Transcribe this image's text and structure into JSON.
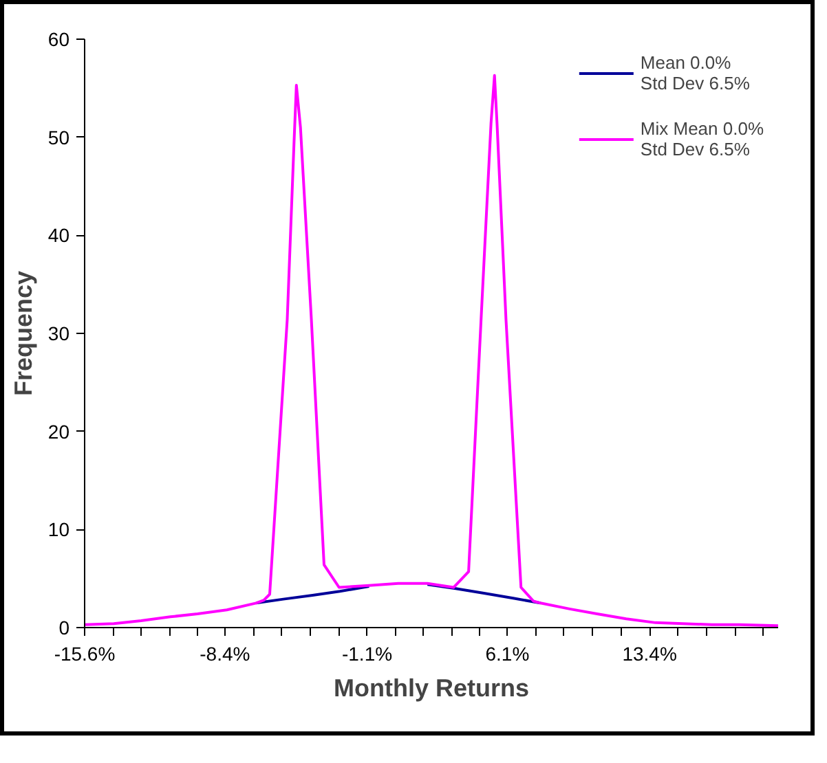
{
  "chart_data": {
    "type": "line",
    "xlabel": "Monthly Returns",
    "ylabel": "Frequency",
    "xlim": [
      -15.6,
      20.0
    ],
    "ylim": [
      0,
      60
    ],
    "xticks": [
      {
        "value": -15.6,
        "label": "-15.6%"
      },
      {
        "value": -14.15,
        "label": null
      },
      {
        "value": -12.69,
        "label": null
      },
      {
        "value": -11.24,
        "label": null
      },
      {
        "value": -9.78,
        "label": null
      },
      {
        "value": -8.4,
        "label": "-8.4%"
      },
      {
        "value": -6.94,
        "label": null
      },
      {
        "value": -5.48,
        "label": null
      },
      {
        "value": -4.02,
        "label": null
      },
      {
        "value": -2.56,
        "label": null
      },
      {
        "value": -1.1,
        "label": "-1.1%"
      },
      {
        "value": 0.35,
        "label": null
      },
      {
        "value": 1.8,
        "label": null
      },
      {
        "value": 3.25,
        "label": null
      },
      {
        "value": 4.7,
        "label": null
      },
      {
        "value": 6.1,
        "label": "6.1%"
      },
      {
        "value": 7.55,
        "label": null
      },
      {
        "value": 9.0,
        "label": null
      },
      {
        "value": 10.46,
        "label": null
      },
      {
        "value": 11.92,
        "label": null
      },
      {
        "value": 13.4,
        "label": "13.4%"
      },
      {
        "value": 14.86,
        "label": null
      },
      {
        "value": 16.32,
        "label": null
      },
      {
        "value": 17.78,
        "label": null
      },
      {
        "value": 19.24,
        "label": null
      }
    ],
    "yticks": [
      0,
      10,
      20,
      30,
      40,
      50,
      60
    ],
    "grid": false,
    "legend": "top right",
    "marker": "none",
    "line_style": "solid",
    "series": [
      {
        "name": "Mean 0.0% Std Dev 6.5%",
        "color": "#000099",
        "x": [
          -6.8,
          -5.4,
          -3.9,
          -2.5,
          -1.0,
          0.5,
          2.0,
          3.4,
          4.9,
          6.4,
          7.8
        ],
        "values": [
          2.5,
          2.9,
          3.3,
          3.7,
          4.2,
          null,
          4.4,
          4.0,
          3.5,
          3.0,
          2.5
        ]
      },
      {
        "name": "Mix Mean 0.0% Std Dev 6.5%",
        "color": "#ff00ff",
        "x": [
          -15.6,
          -14.1,
          -12.7,
          -11.2,
          -9.8,
          -8.3,
          -6.8,
          -6.4,
          -6.1,
          -5.2,
          -4.85,
          -4.73,
          -4.52,
          -3.96,
          -3.31,
          -2.54,
          -1.0,
          0.5,
          2.0,
          3.34,
          4.11,
          4.75,
          5.26,
          5.44,
          5.57,
          6.03,
          6.8,
          7.44,
          7.8,
          9.3,
          10.7,
          12.2,
          13.7,
          15.1,
          16.6,
          18.0,
          20.0
        ],
        "values": [
          0.3,
          0.4,
          0.7,
          1.1,
          1.4,
          1.8,
          2.5,
          2.8,
          3.4,
          31.4,
          49.5,
          55.3,
          51.0,
          31.4,
          6.4,
          4.1,
          4.3,
          4.5,
          4.5,
          4.1,
          5.7,
          31.4,
          51.4,
          56.3,
          51.4,
          31.4,
          4.1,
          2.7,
          2.5,
          1.9,
          1.4,
          0.9,
          0.5,
          0.4,
          0.3,
          0.3,
          0.2
        ]
      }
    ]
  }
}
